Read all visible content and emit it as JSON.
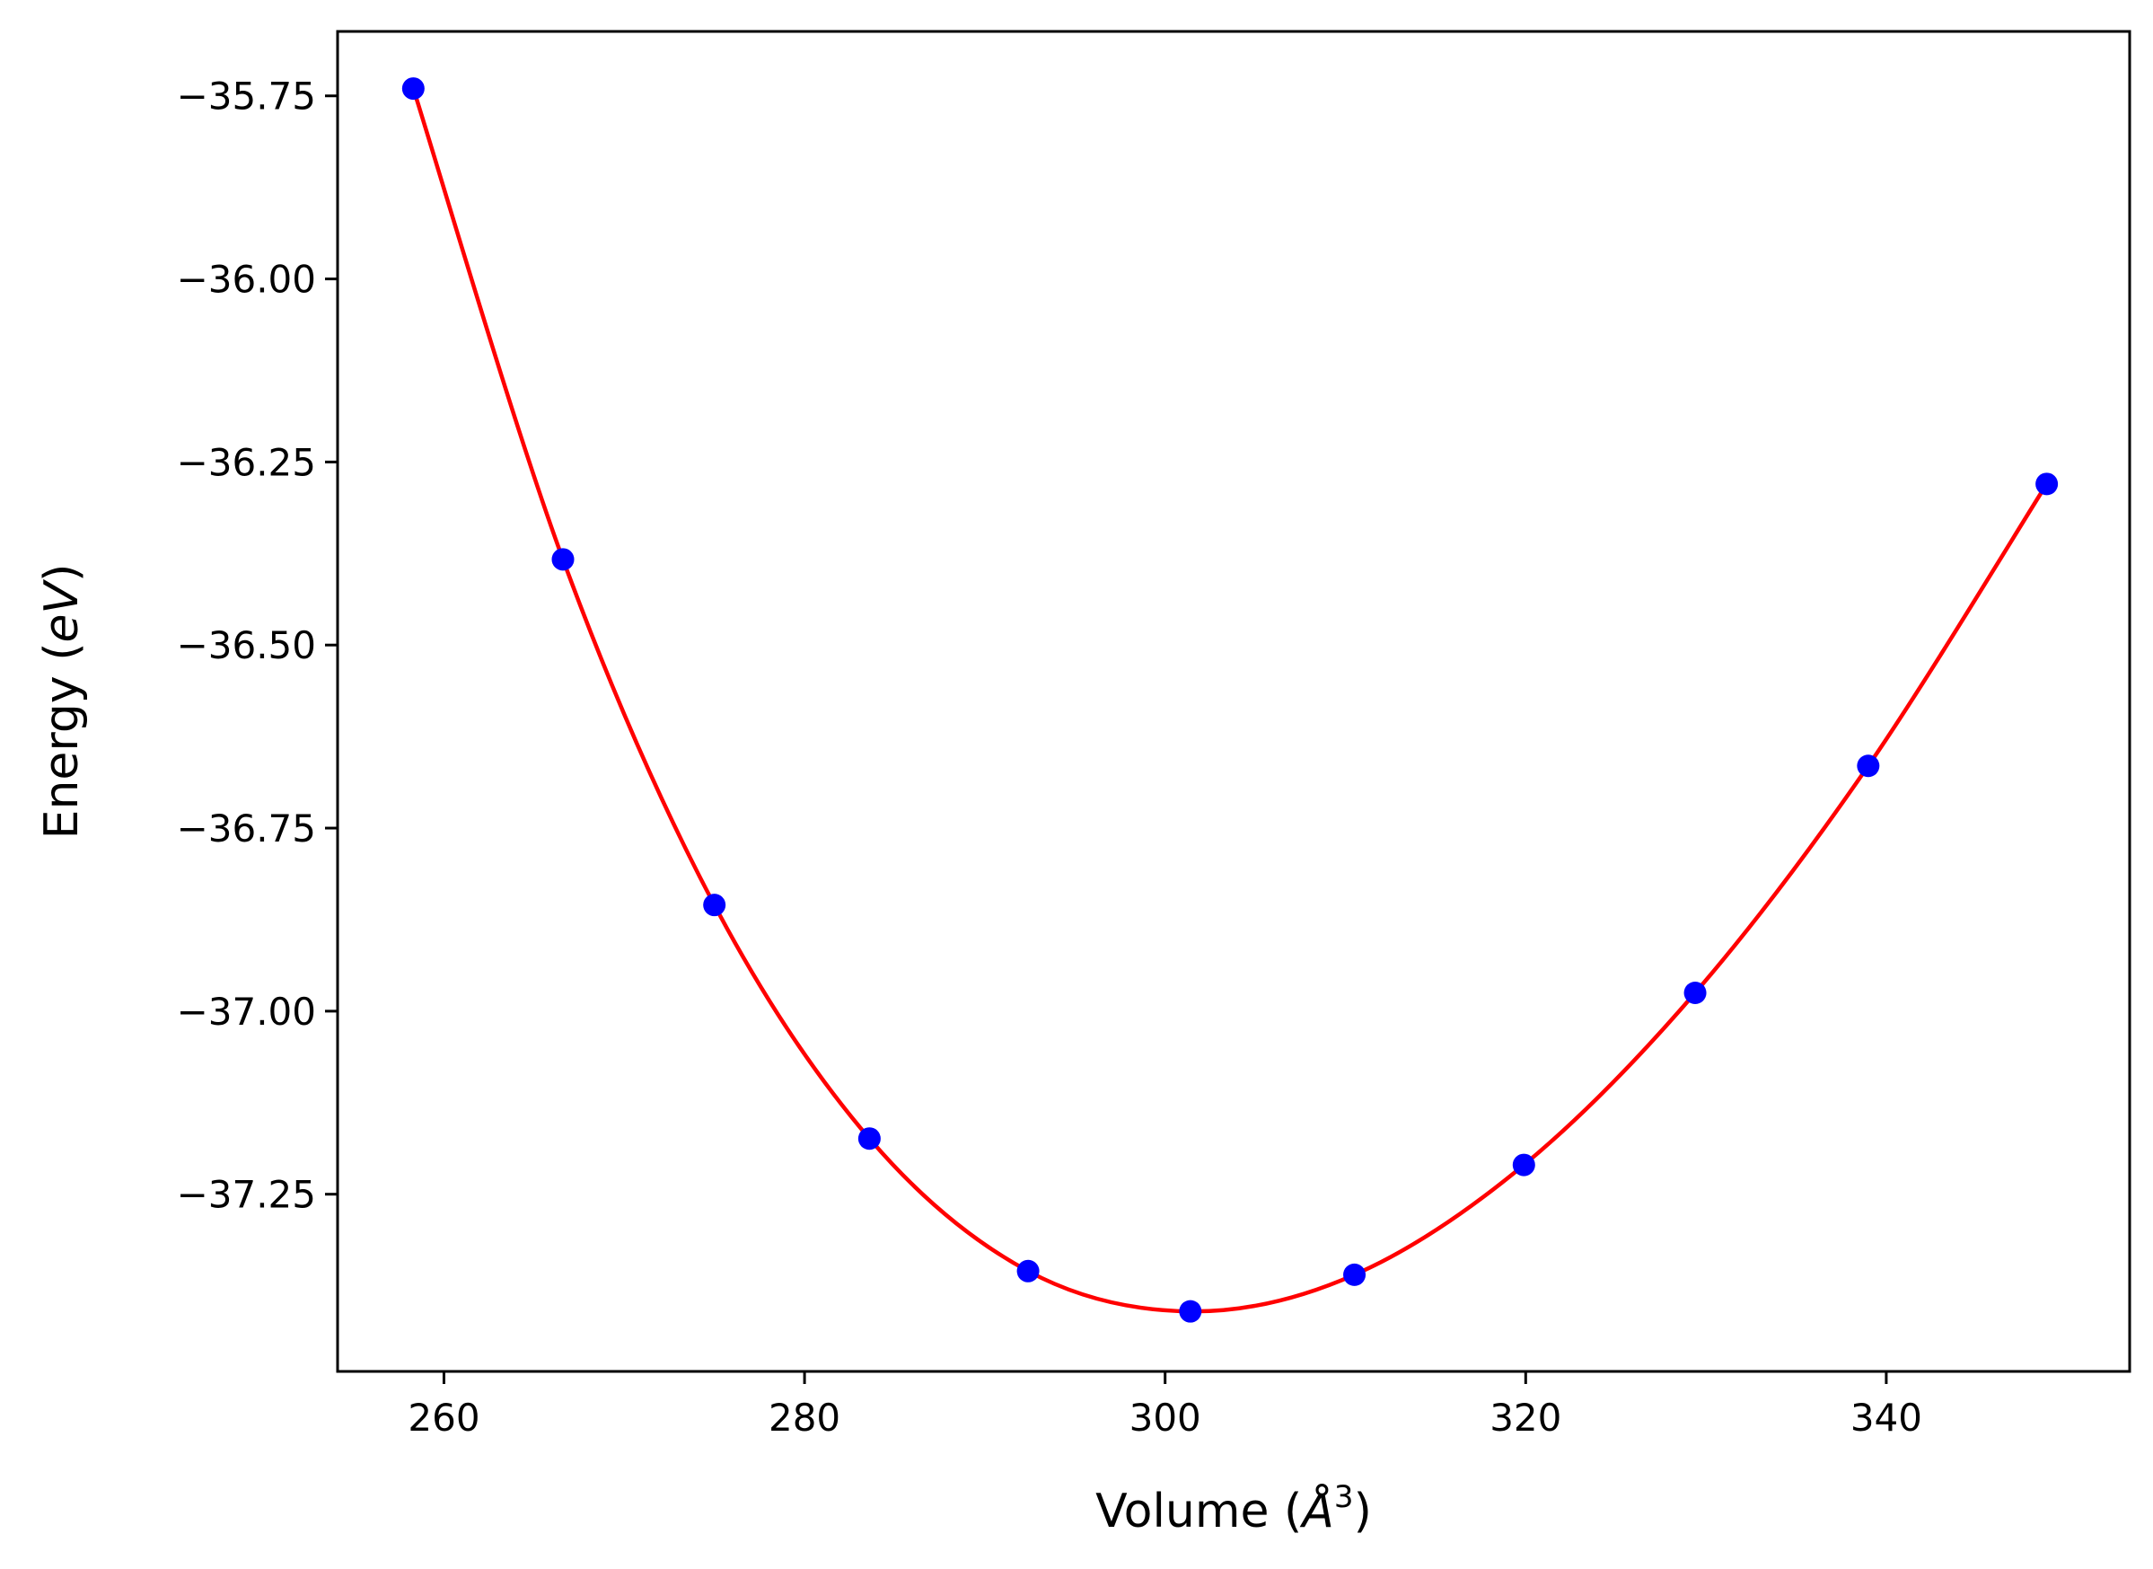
{
  "chart_data": {
    "type": "scatter",
    "title": "",
    "xlabel_parts": [
      "Volume (",
      "Å",
      "3",
      ")"
    ],
    "ylabel_parts": [
      "Energy (",
      "eV",
      ")"
    ],
    "xlim": [
      254.1,
      353.5
    ],
    "ylim": [
      -37.492,
      -35.662
    ],
    "xticks": [
      260,
      280,
      300,
      320,
      340
    ],
    "xtick_labels": [
      "260",
      "280",
      "300",
      "320",
      "340"
    ],
    "yticks": [
      -35.75,
      -36.0,
      -36.25,
      -36.5,
      -36.75,
      -37.0,
      -37.25
    ],
    "ytick_labels": [
      "−35.75",
      "−36.00",
      "−36.25",
      "−36.50",
      "−36.75",
      "−37.00",
      "−37.25"
    ],
    "grid": false,
    "series": [
      {
        "kind": "points",
        "color": "#0000ff",
        "x": [
          258.3,
          266.6,
          275.0,
          283.6,
          292.4,
          301.4,
          310.5,
          319.9,
          329.4,
          339.0,
          348.9
        ],
        "y": [
          -35.74,
          -36.383,
          -36.855,
          -37.174,
          -37.355,
          -37.41,
          -37.36,
          -37.21,
          -36.975,
          -36.665,
          -36.28
        ]
      },
      {
        "kind": "fit-curve",
        "color": "#ff0000",
        "x": [
          258.3,
          266.6,
          275.0,
          283.6,
          292.4,
          301.4,
          310.5,
          319.9,
          329.4,
          339.0,
          348.9
        ],
        "y": [
          -35.74,
          -36.383,
          -36.855,
          -37.174,
          -37.355,
          -37.41,
          -37.36,
          -37.21,
          -36.975,
          -36.665,
          -36.28
        ]
      }
    ]
  }
}
